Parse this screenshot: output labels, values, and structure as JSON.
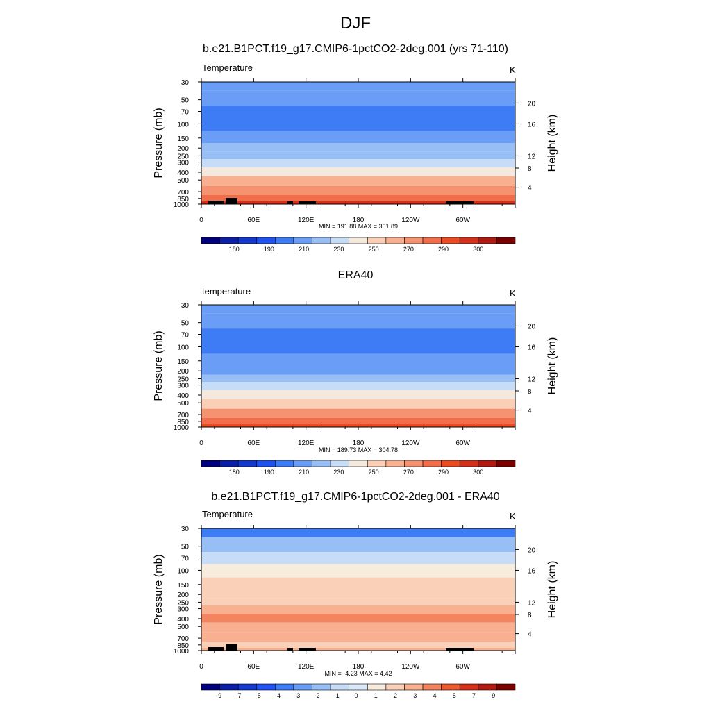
{
  "figure": {
    "title": "DJF",
    "colors": {
      "temp_levels": [
        "#00007f",
        "#0a1fa6",
        "#1539cc",
        "#1f52f0",
        "#3d7cf5",
        "#6a9df5",
        "#98bff5",
        "#c6dcf7",
        "#f5e8dc",
        "#fbcfb5",
        "#f8b090",
        "#f59270",
        "#f26e4a",
        "#ec4b22",
        "#d5301a",
        "#b01a10",
        "#7a0000"
      ],
      "diff_levels": [
        "#00007f",
        "#0a1fa6",
        "#1539cc",
        "#1f52f0",
        "#3d7cf5",
        "#6a9df5",
        "#98bff5",
        "#c6dcf7",
        "#dae8f7",
        "#f8ecde",
        "#fbd0b8",
        "#f8b090",
        "#f28560",
        "#ec5a30",
        "#d5301a",
        "#b01a10",
        "#7a0000"
      ]
    }
  },
  "chart_data": [
    {
      "type": "heatmap",
      "title": "b.e21.B1PCT.f19_g17.CMIP6-1pctCO2-2deg.001 (yrs 71-110)",
      "variable": "Temperature",
      "units": "K",
      "min_max_text": "MIN = 191.88  MAX = 301.89",
      "min": 191.88,
      "max": 301.89,
      "ylabel": "Pressure (mb)",
      "ylabel_right": "Height (km)",
      "x_ticks": [
        "0",
        "60E",
        "120E",
        "180",
        "120W",
        "60W"
      ],
      "y_ticks": [
        "30",
        "50",
        "70",
        "100",
        "150",
        "200",
        "250",
        "300",
        "400",
        "500",
        "700",
        "850",
        "1000"
      ],
      "y_ticks_right": [
        "20",
        "16",
        "12",
        "8",
        "4"
      ],
      "colorbar_labels": [
        "180",
        "190",
        "210",
        "230",
        "250",
        "270",
        "290",
        "300"
      ],
      "layers": [
        {
          "p": 30,
          "t": 215
        },
        {
          "p": 50,
          "t": 212
        },
        {
          "p": 70,
          "t": 207
        },
        {
          "p": 100,
          "t": 205
        },
        {
          "p": 150,
          "t": 212
        },
        {
          "p": 200,
          "t": 220
        },
        {
          "p": 250,
          "t": 226
        },
        {
          "p": 300,
          "t": 234
        },
        {
          "p": 400,
          "t": 248
        },
        {
          "p": 500,
          "t": 260
        },
        {
          "p": 700,
          "t": 276
        },
        {
          "p": 850,
          "t": 286
        },
        {
          "p": 1000,
          "t": 296
        }
      ],
      "topography": true
    },
    {
      "type": "heatmap",
      "title": "ERA40",
      "variable": "temperature",
      "units": "K",
      "min_max_text": "MIN = 189.73  MAX = 304.78",
      "min": 189.73,
      "max": 304.78,
      "ylabel": "Pressure (mb)",
      "ylabel_right": "Height (km)",
      "x_ticks": [
        "0",
        "60E",
        "120E",
        "180",
        "120W",
        "60W"
      ],
      "y_ticks": [
        "30",
        "50",
        "70",
        "100",
        "150",
        "200",
        "250",
        "300",
        "400",
        "500",
        "700",
        "850",
        "1000"
      ],
      "y_ticks_right": [
        "20",
        "16",
        "12",
        "8",
        "4"
      ],
      "colorbar_labels": [
        "180",
        "190",
        "210",
        "230",
        "250",
        "270",
        "290",
        "300"
      ],
      "layers": [
        {
          "p": 30,
          "t": 214
        },
        {
          "p": 50,
          "t": 211
        },
        {
          "p": 70,
          "t": 206
        },
        {
          "p": 100,
          "t": 204
        },
        {
          "p": 150,
          "t": 210
        },
        {
          "p": 200,
          "t": 218
        },
        {
          "p": 250,
          "t": 225
        },
        {
          "p": 300,
          "t": 232
        },
        {
          "p": 400,
          "t": 245
        },
        {
          "p": 500,
          "t": 256
        },
        {
          "p": 700,
          "t": 272
        },
        {
          "p": 850,
          "t": 283
        },
        {
          "p": 1000,
          "t": 292
        }
      ],
      "topography": false
    },
    {
      "type": "heatmap",
      "title": "b.e21.B1PCT.f19_g17.CMIP6-1pctCO2-2deg.001 - ERA40",
      "variable": "Temperature",
      "units": "K",
      "min_max_text": "MIN = -4.23  MAX =   4.42",
      "min": -4.23,
      "max": 4.42,
      "ylabel": "Pressure (mb)",
      "ylabel_right": "Height (km)",
      "x_ticks": [
        "0",
        "60E",
        "120E",
        "180",
        "120W",
        "60W"
      ],
      "y_ticks": [
        "30",
        "50",
        "70",
        "100",
        "150",
        "200",
        "250",
        "300",
        "400",
        "500",
        "700",
        "850",
        "1000"
      ],
      "y_ticks_right": [
        "20",
        "16",
        "12",
        "8",
        "4"
      ],
      "colorbar_labels": [
        "-9",
        "-7",
        "-5",
        "-4",
        "-3",
        "-2",
        "-1",
        "0",
        "1",
        "2",
        "3",
        "4",
        "5",
        "7",
        "9"
      ],
      "layers": [
        {
          "p": 30,
          "t": -4
        },
        {
          "p": 50,
          "t": -2
        },
        {
          "p": 70,
          "t": -1
        },
        {
          "p": 100,
          "t": 1
        },
        {
          "p": 150,
          "t": 2
        },
        {
          "p": 200,
          "t": 2
        },
        {
          "p": 250,
          "t": 2
        },
        {
          "p": 300,
          "t": 3
        },
        {
          "p": 400,
          "t": 4
        },
        {
          "p": 500,
          "t": 3
        },
        {
          "p": 700,
          "t": 3
        },
        {
          "p": 850,
          "t": 2
        },
        {
          "p": 1000,
          "t": 3
        }
      ],
      "topography": true
    }
  ]
}
